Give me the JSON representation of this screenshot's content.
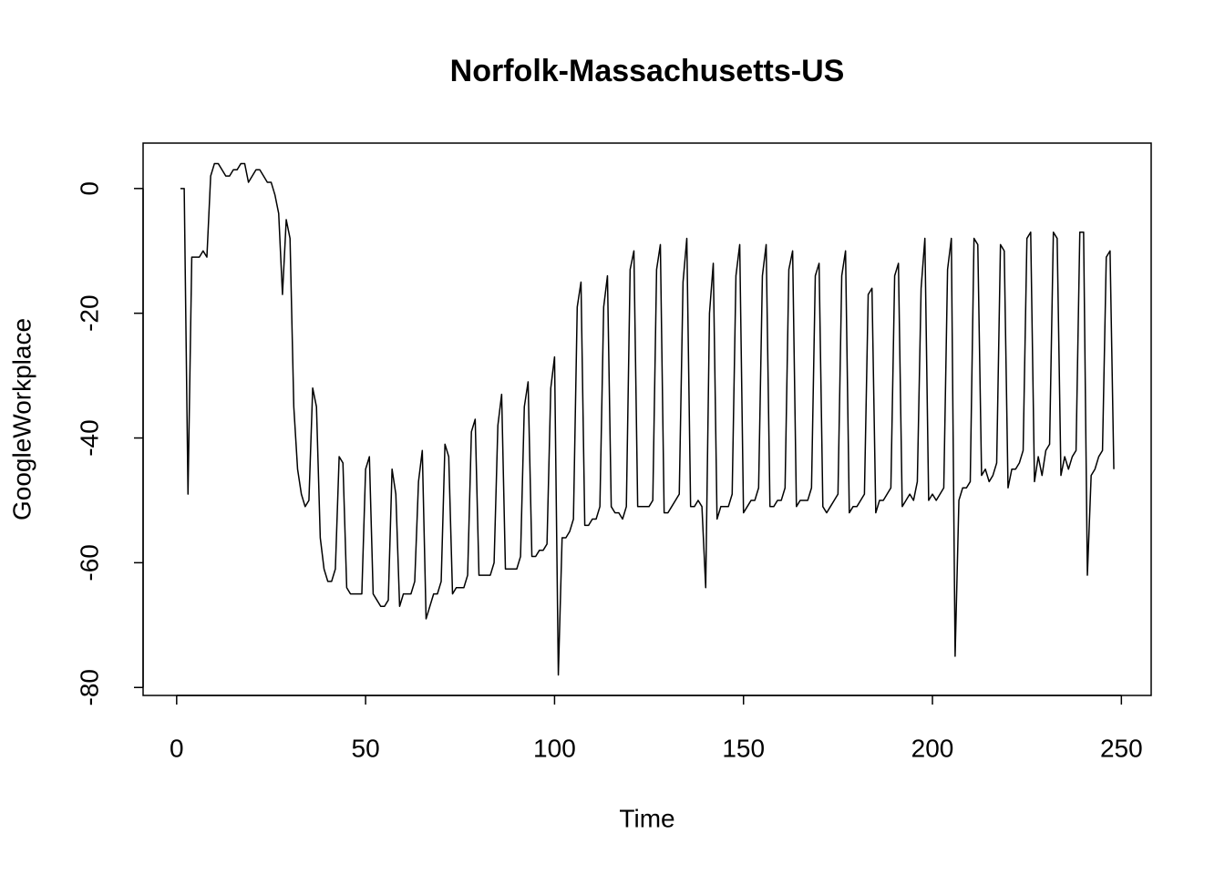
{
  "chart_data": {
    "type": "line",
    "title": "Norfolk-Massachusetts-US",
    "x_label": "Time",
    "y_label": "GoogleWorkplace",
    "xlim": [
      -8.88,
      257.88
    ],
    "ylim": [
      -81.28,
      7.28
    ],
    "xticks": [
      0,
      50,
      100,
      150,
      200,
      250
    ],
    "yticks": [
      -80,
      -60,
      -40,
      -20,
      0
    ],
    "x": [
      1,
      2,
      3,
      4,
      5,
      6,
      7,
      8,
      9,
      10,
      11,
      12,
      13,
      14,
      15,
      16,
      17,
      18,
      19,
      20,
      21,
      22,
      23,
      24,
      25,
      26,
      27,
      28,
      29,
      30,
      31,
      32,
      33,
      34,
      35,
      36,
      37,
      38,
      39,
      40,
      41,
      42,
      43,
      44,
      45,
      46,
      47,
      48,
      49,
      50,
      51,
      52,
      53,
      54,
      55,
      56,
      57,
      58,
      59,
      60,
      61,
      62,
      63,
      64,
      65,
      66,
      67,
      68,
      69,
      70,
      71,
      72,
      73,
      74,
      75,
      76,
      77,
      78,
      79,
      80,
      81,
      82,
      83,
      84,
      85,
      86,
      87,
      88,
      89,
      90,
      91,
      92,
      93,
      94,
      95,
      96,
      97,
      98,
      99,
      100,
      101,
      102,
      103,
      104,
      105,
      106,
      107,
      108,
      109,
      110,
      111,
      112,
      113,
      114,
      115,
      116,
      117,
      118,
      119,
      120,
      121,
      122,
      123,
      124,
      125,
      126,
      127,
      128,
      129,
      130,
      131,
      132,
      133,
      134,
      135,
      136,
      137,
      138,
      139,
      140,
      141,
      142,
      143,
      144,
      145,
      146,
      147,
      148,
      149,
      150,
      151,
      152,
      153,
      154,
      155,
      156,
      157,
      158,
      159,
      160,
      161,
      162,
      163,
      164,
      165,
      166,
      167,
      168,
      169,
      170,
      171,
      172,
      173,
      174,
      175,
      176,
      177,
      178,
      179,
      180,
      181,
      182,
      183,
      184,
      185,
      186,
      187,
      188,
      189,
      190,
      191,
      192,
      193,
      194,
      195,
      196,
      197,
      198,
      199,
      200,
      201,
      202,
      203,
      204,
      205,
      206,
      207,
      208,
      209,
      210,
      211,
      212,
      213,
      214,
      215,
      216,
      217,
      218,
      219,
      220,
      221,
      222,
      223,
      224,
      225,
      226,
      227,
      228,
      229,
      230,
      231,
      232,
      233,
      234,
      235,
      236,
      237,
      238,
      239,
      240,
      241,
      242,
      243,
      244,
      245,
      246,
      247,
      248
    ],
    "series": [
      {
        "name": "GoogleWorkplace",
        "color": "#000000",
        "values": [
          0,
          0,
          -49,
          -11,
          -11,
          -11,
          -10,
          -11,
          2,
          4,
          4,
          3,
          2,
          2,
          3,
          3,
          4,
          4,
          1,
          2,
          3,
          3,
          2,
          1,
          1,
          -1,
          -4,
          -17,
          -5,
          -8,
          -35,
          -45,
          -49,
          -51,
          -50,
          -32,
          -35,
          -56,
          -61,
          -63,
          -63,
          -61,
          -43,
          -44,
          -64,
          -65,
          -65,
          -65,
          -65,
          -45,
          -43,
          -65,
          -66,
          -67,
          -67,
          -66,
          -45,
          -49,
          -67,
          -65,
          -65,
          -65,
          -63,
          -47,
          -42,
          -69,
          -67,
          -65,
          -65,
          -63,
          -41,
          -43,
          -65,
          -64,
          -64,
          -64,
          -62,
          -39,
          -37,
          -62,
          -62,
          -62,
          -62,
          -60,
          -38,
          -33,
          -61,
          -61,
          -61,
          -61,
          -59,
          -35,
          -31,
          -59,
          -59,
          -58,
          -58,
          -57,
          -32,
          -27,
          -78,
          -56,
          -56,
          -55,
          -53,
          -19,
          -15,
          -54,
          -54,
          -53,
          -53,
          -51,
          -19,
          -14,
          -51,
          -52,
          -52,
          -53,
          -51,
          -13,
          -10,
          -51,
          -51,
          -51,
          -51,
          -50,
          -13,
          -9,
          -52,
          -52,
          -51,
          -50,
          -49,
          -15,
          -8,
          -51,
          -51,
          -50,
          -51,
          -64,
          -20,
          -12,
          -53,
          -51,
          -51,
          -51,
          -49,
          -14,
          -9,
          -52,
          -51,
          -50,
          -50,
          -48,
          -14,
          -9,
          -51,
          -51,
          -50,
          -50,
          -48,
          -13,
          -10,
          -51,
          -50,
          -50,
          -50,
          -48,
          -14,
          -12,
          -51,
          -52,
          -51,
          -50,
          -49,
          -14,
          -10,
          -52,
          -51,
          -51,
          -50,
          -49,
          -17,
          -16,
          -52,
          -50,
          -50,
          -49,
          -48,
          -14,
          -12,
          -51,
          -50,
          -49,
          -50,
          -47,
          -16,
          -8,
          -50,
          -49,
          -50,
          -49,
          -48,
          -13,
          -8,
          -75,
          -50,
          -48,
          -48,
          -47,
          -8,
          -9,
          -46,
          -45,
          -47,
          -46,
          -44,
          -9,
          -10,
          -48,
          -45,
          -45,
          -44,
          -42,
          -8,
          -7,
          -47,
          -43,
          -46,
          -42,
          -41,
          -7,
          -8,
          -46,
          -43,
          -45,
          -43,
          -42,
          -7,
          -7,
          -62,
          -46,
          -45,
          -43,
          -42,
          -11,
          -10,
          -45
        ]
      }
    ]
  }
}
